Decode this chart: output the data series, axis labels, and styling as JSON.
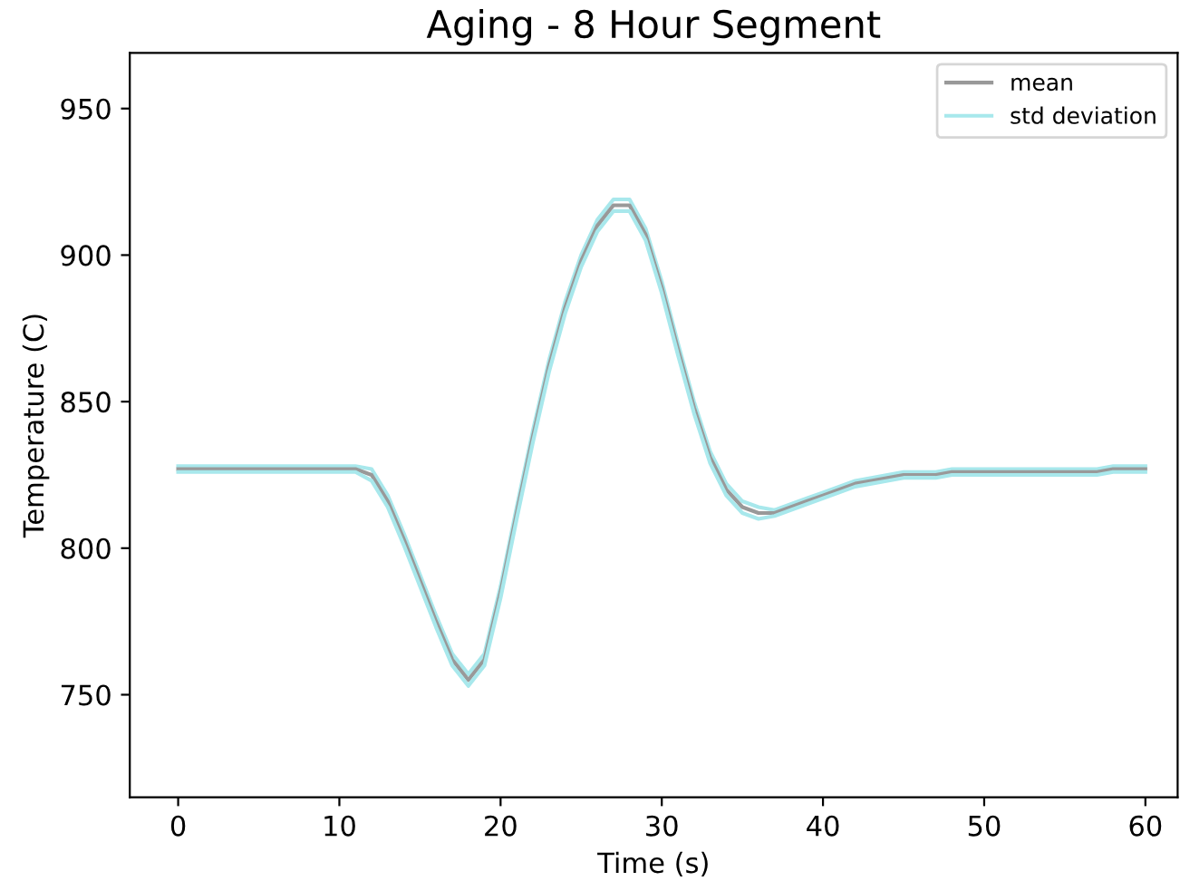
{
  "chart_data": {
    "type": "line",
    "title": "Aging - 8 Hour Segment",
    "xlabel": "Time (s)",
    "ylabel": "Temperature (C)",
    "x": [
      0,
      1,
      2,
      3,
      4,
      5,
      6,
      7,
      8,
      9,
      10,
      11,
      12,
      13,
      14,
      15,
      16,
      17,
      18,
      19,
      20,
      21,
      22,
      23,
      24,
      25,
      26,
      27,
      28,
      29,
      30,
      31,
      32,
      33,
      34,
      35,
      36,
      37,
      38,
      39,
      40,
      41,
      42,
      43,
      44,
      45,
      46,
      47,
      48,
      49,
      50,
      51,
      52,
      53,
      54,
      55,
      56,
      57,
      58,
      59,
      60
    ],
    "series": [
      {
        "name": "mean",
        "color": "#999999",
        "values": [
          827,
          827,
          827,
          827,
          827,
          827,
          827,
          827,
          827,
          827,
          827,
          827,
          825,
          816,
          803,
          789,
          775,
          762,
          755,
          762,
          785,
          812,
          838,
          862,
          882,
          898,
          910,
          917,
          917,
          907,
          889,
          868,
          848,
          831,
          820,
          814,
          812,
          812,
          814,
          816,
          818,
          820,
          822,
          823,
          824,
          825,
          825,
          825,
          826,
          826,
          826,
          826,
          826,
          826,
          826,
          826,
          826,
          826,
          827,
          827,
          827
        ]
      },
      {
        "name": "std deviation",
        "color": "#a8e8ec",
        "values": [
          828,
          828,
          828,
          828,
          828,
          828,
          828,
          828,
          828,
          828,
          828,
          828,
          827,
          818,
          805,
          791,
          777,
          764,
          757,
          764,
          787,
          814,
          840,
          864,
          884,
          900,
          912,
          919,
          919,
          909,
          891,
          870,
          850,
          833,
          822,
          816,
          814,
          813,
          815,
          817,
          819,
          821,
          823,
          824,
          825,
          826,
          826,
          826,
          827,
          827,
          827,
          827,
          827,
          827,
          827,
          827,
          827,
          827,
          828,
          828,
          828
        ]
      },
      {
        "color": "#a8e8ec",
        "values": [
          826,
          826,
          826,
          826,
          826,
          826,
          826,
          826,
          826,
          826,
          826,
          826,
          823,
          814,
          801,
          787,
          773,
          760,
          753,
          760,
          783,
          810,
          836,
          860,
          880,
          896,
          908,
          915,
          915,
          905,
          887,
          866,
          846,
          829,
          818,
          812,
          810,
          811,
          813,
          815,
          817,
          819,
          821,
          822,
          823,
          824,
          824,
          824,
          825,
          825,
          825,
          825,
          825,
          825,
          825,
          825,
          825,
          825,
          826,
          826,
          826
        ]
      }
    ],
    "xlim": [
      -3,
      62
    ],
    "ylim": [
      715,
      969
    ],
    "xticks": [
      0,
      10,
      20,
      30,
      40,
      50,
      60
    ],
    "yticks": [
      750,
      800,
      850,
      900,
      950
    ],
    "legend": "top right",
    "grid": false
  }
}
